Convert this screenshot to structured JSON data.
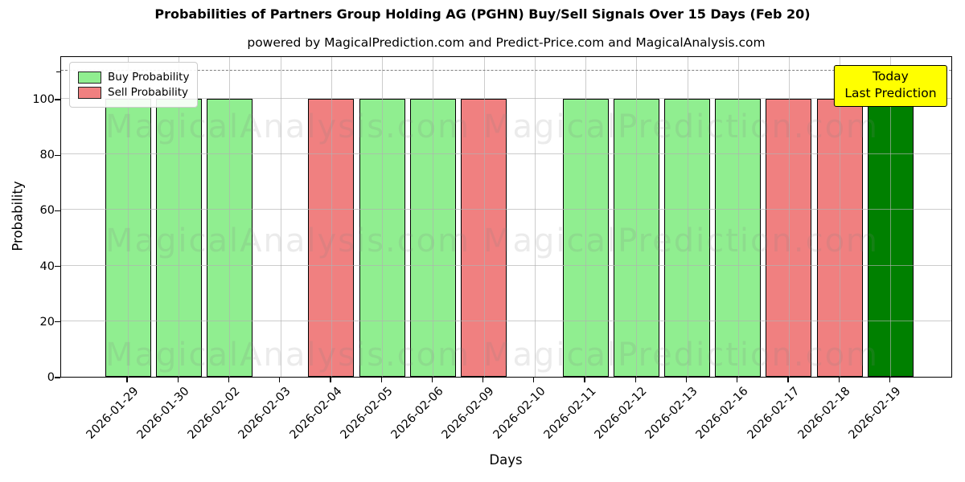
{
  "title": "Probabilities of Partners Group Holding AG (PGHN) Buy/Sell Signals Over 15 Days (Feb 20)",
  "subtitle": "powered by MagicalPrediction.com and Predict-Price.com and MagicalAnalysis.com",
  "watermarks": {
    "left_text": "MagicalAnalysis.com",
    "right_text": "MagicalPrediction.com"
  },
  "legend": {
    "items": [
      {
        "label": "Buy Probability",
        "color": "#90EE90"
      },
      {
        "label": "Sell Probability",
        "color": "#F08080"
      }
    ]
  },
  "annotation": {
    "line1": "Today",
    "line2": "Last Prediction",
    "bg_color": "#FFFF00"
  },
  "axes": {
    "xlabel": "Days",
    "ylabel": "Probability",
    "ytick_values": [
      0,
      20,
      40,
      60,
      80,
      100
    ],
    "unlabeled_ytick": 110
  },
  "colors": {
    "buy": "#90EE90",
    "sell": "#F08080",
    "today": "#008000",
    "bar_edge": "#000000",
    "grid": "#b0b0b0",
    "dashed_line": "#7f7f7f"
  },
  "chart_data": {
    "type": "bar",
    "title": "Probabilities of Partners Group Holding AG (PGHN) Buy/Sell Signals Over 15 Days (Feb 20)",
    "subtitle": "powered by MagicalPrediction.com and Predict-Price.com and MagicalAnalysis.com",
    "xlabel": "Days",
    "ylabel": "Probability",
    "ylim": [
      0,
      115.6
    ],
    "dashed_hline_y": 110,
    "grid": true,
    "legend_position": "upper-left",
    "categories": [
      "2026-01-29",
      "2026-01-30",
      "2026-02-02",
      "2026-02-03",
      "2026-02-04",
      "2026-02-05",
      "2026-02-06",
      "2026-02-09",
      "2026-02-10",
      "2026-02-11",
      "2026-02-12",
      "2026-02-13",
      "2026-02-16",
      "2026-02-17",
      "2026-02-18",
      "2026-02-19"
    ],
    "series": [
      {
        "name": "Buy Probability",
        "color": "#90EE90",
        "values": [
          100,
          100,
          100,
          0,
          0,
          100,
          100,
          0,
          0,
          100,
          100,
          100,
          100,
          0,
          0,
          0
        ]
      },
      {
        "name": "Sell Probability",
        "color": "#F08080",
        "values": [
          0,
          0,
          0,
          0,
          100,
          0,
          0,
          100,
          0,
          0,
          0,
          0,
          0,
          100,
          100,
          0
        ]
      },
      {
        "name": "Today Last Prediction",
        "color": "#008000",
        "values": [
          0,
          0,
          0,
          0,
          0,
          0,
          0,
          0,
          0,
          0,
          0,
          0,
          0,
          0,
          0,
          100
        ]
      }
    ]
  }
}
